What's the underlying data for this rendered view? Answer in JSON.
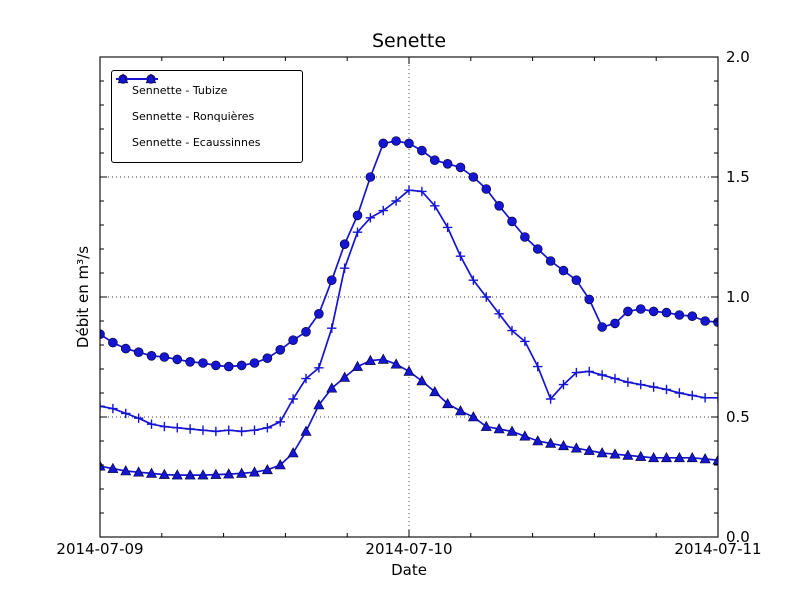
{
  "figure": {
    "background": "#ffffff"
  },
  "chart_data": {
    "type": "line",
    "title": "Senette",
    "xlabel": "Date",
    "ylabel": "Débit en m³/s",
    "x_hours_range": [
      0,
      48
    ],
    "x_major_ticks": [
      {
        "hour": 0,
        "label": "2014-07-09"
      },
      {
        "hour": 24,
        "label": "2014-07-10"
      },
      {
        "hour": 48,
        "label": "2014-07-11"
      }
    ],
    "x_minor_tick_every_hours": 4.8,
    "ylim": [
      0,
      2
    ],
    "y_major_ticks": [
      {
        "value": 0.0,
        "label": "0.0"
      },
      {
        "value": 0.5,
        "label": "0.5"
      },
      {
        "value": 1.0,
        "label": "1.0"
      },
      {
        "value": 1.5,
        "label": "1.5"
      },
      {
        "value": 2.0,
        "label": "2.0"
      }
    ],
    "y_minor_tick_every": 0.1,
    "grid": {
      "vertical_at_hours": [
        24
      ],
      "horizontal_at_values": [
        0.5,
        1.0,
        1.5
      ],
      "style": "dotted"
    },
    "legend": {
      "position": "upper-left"
    },
    "sample_interval_hours": 1,
    "series_color": "#1515d2",
    "series": [
      {
        "name": "Sennette - Tubize",
        "marker": "circle",
        "color": "#1515d2",
        "values": [
          0.845,
          0.81,
          0.785,
          0.77,
          0.755,
          0.75,
          0.74,
          0.73,
          0.725,
          0.715,
          0.71,
          0.715,
          0.725,
          0.745,
          0.78,
          0.82,
          0.855,
          0.93,
          1.07,
          1.22,
          1.34,
          1.5,
          1.64,
          1.65,
          1.64,
          1.61,
          1.57,
          1.555,
          1.54,
          1.5,
          1.45,
          1.38,
          1.315,
          1.25,
          1.2,
          1.15,
          1.11,
          1.07,
          0.99,
          0.875,
          0.89,
          0.94,
          0.95,
          0.94,
          0.935,
          0.925,
          0.92,
          0.9,
          0.895
        ]
      },
      {
        "name": "Sennette - Ronquières",
        "marker": "plus",
        "color": "#1515d2",
        "values": [
          0.545,
          0.535,
          0.515,
          0.495,
          0.47,
          0.46,
          0.455,
          0.45,
          0.445,
          0.44,
          0.445,
          0.44,
          0.445,
          0.455,
          0.48,
          0.575,
          0.66,
          0.705,
          0.87,
          1.12,
          1.27,
          1.33,
          1.36,
          1.4,
          1.445,
          1.44,
          1.38,
          1.29,
          1.17,
          1.07,
          1.0,
          0.93,
          0.86,
          0.815,
          0.71,
          0.575,
          0.635,
          0.685,
          0.69,
          0.675,
          0.66,
          0.645,
          0.635,
          0.625,
          0.615,
          0.6,
          0.59,
          0.58,
          0.58
        ]
      },
      {
        "name": "Sennette - Ecaussinnes",
        "marker": "triangle",
        "color": "#1515d2",
        "values": [
          0.295,
          0.285,
          0.275,
          0.27,
          0.265,
          0.26,
          0.258,
          0.258,
          0.258,
          0.26,
          0.262,
          0.265,
          0.27,
          0.28,
          0.3,
          0.35,
          0.44,
          0.55,
          0.62,
          0.665,
          0.71,
          0.735,
          0.74,
          0.72,
          0.69,
          0.65,
          0.605,
          0.555,
          0.525,
          0.5,
          0.46,
          0.45,
          0.44,
          0.42,
          0.4,
          0.39,
          0.38,
          0.37,
          0.36,
          0.35,
          0.345,
          0.34,
          0.335,
          0.33,
          0.33,
          0.33,
          0.33,
          0.325,
          0.32
        ]
      }
    ]
  }
}
